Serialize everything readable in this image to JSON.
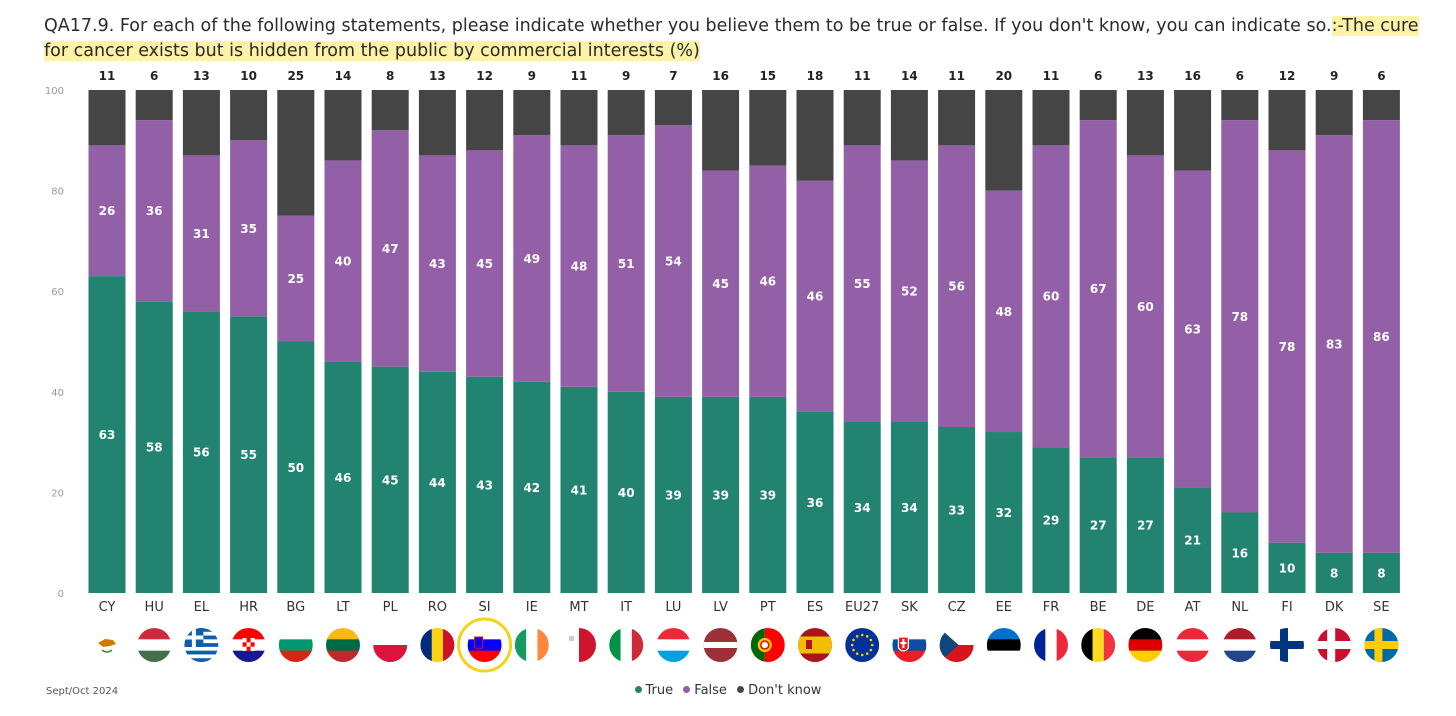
{
  "title": {
    "question": "QA17.9. For each of the following statements, please indicate whether you believe them to be true or false. If you don't know, you can indicate so.",
    "statement": ":-The cure for cancer exists but is hidden from the public by commercial interests (%)"
  },
  "source": "Sept/Oct 2024",
  "colors": {
    "true": "#218370",
    "false": "#9360a8",
    "dont_know": "#454545",
    "highlight": "#fcf2a8",
    "circle": "#f2d41b"
  },
  "chart_data": {
    "type": "bar",
    "stacked": true,
    "categories": [
      "CY",
      "HU",
      "EL",
      "HR",
      "BG",
      "LT",
      "PL",
      "RO",
      "SI",
      "IE",
      "MT",
      "IT",
      "LU",
      "LV",
      "PT",
      "ES",
      "EU27",
      "SK",
      "CZ",
      "EE",
      "FR",
      "BE",
      "DE",
      "AT",
      "NL",
      "FI",
      "DK",
      "SE"
    ],
    "series": [
      {
        "name": "True",
        "color": "#218370",
        "values": [
          63,
          58,
          56,
          55,
          50,
          46,
          45,
          44,
          43,
          42,
          41,
          40,
          39,
          39,
          39,
          36,
          34,
          34,
          33,
          32,
          29,
          27,
          27,
          21,
          16,
          10,
          8,
          8
        ]
      },
      {
        "name": "False",
        "color": "#9360a8",
        "values": [
          26,
          36,
          31,
          35,
          25,
          40,
          47,
          43,
          45,
          49,
          48,
          51,
          54,
          45,
          46,
          46,
          55,
          52,
          56,
          48,
          60,
          67,
          60,
          63,
          78,
          78,
          83,
          86
        ]
      },
      {
        "name": "Don't know",
        "color": "#454545",
        "values": [
          11,
          6,
          13,
          10,
          25,
          14,
          8,
          13,
          12,
          9,
          11,
          9,
          7,
          16,
          15,
          18,
          11,
          14,
          11,
          20,
          11,
          6,
          13,
          16,
          6,
          12,
          9,
          6
        ]
      }
    ],
    "ylim": [
      0,
      100
    ],
    "yticks": [
      "0",
      "20",
      "40",
      "60",
      "80",
      "100"
    ],
    "highlighted_category": "SI",
    "legend_position": "bottom"
  },
  "flags": [
    "Cyprus",
    "Hungary",
    "Greece",
    "Croatia",
    "Bulgaria",
    "Lithuania",
    "Poland",
    "Romania",
    "Slovenia",
    "Ireland",
    "Malta",
    "Italy",
    "Luxembourg",
    "Latvia",
    "Portugal",
    "Spain",
    "European Union",
    "Slovakia",
    "Czechia",
    "Estonia",
    "France",
    "Belgium",
    "Germany",
    "Austria",
    "Netherlands",
    "Finland",
    "Denmark",
    "Sweden"
  ]
}
